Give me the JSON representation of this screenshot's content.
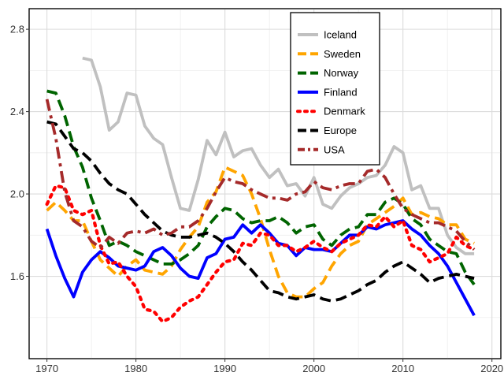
{
  "chart_data": {
    "type": "line",
    "title": "",
    "xlabel": "",
    "ylabel": "",
    "xlim": [
      1968,
      2021
    ],
    "ylim": [
      1.2,
      2.9
    ],
    "xticks": [
      1970,
      1980,
      1990,
      2000,
      2010,
      2020
    ],
    "yticks": [
      1.6,
      2.0,
      2.4,
      2.8
    ],
    "xtick_labels": [
      "1970",
      "1980",
      "1990",
      "2000",
      "2010",
      "2020"
    ],
    "ytick_labels": [
      "1.6",
      "2.0",
      "2.4",
      "2.8"
    ],
    "grid": true,
    "legend_position": "top-right",
    "series": [
      {
        "name": "Iceland",
        "color": "#c0c0c0",
        "style": "solid",
        "x": [
          1974,
          1975,
          1976,
          1977,
          1978,
          1979,
          1980,
          1981,
          1982,
          1983,
          1984,
          1985,
          1986,
          1987,
          1988,
          1989,
          1990,
          1991,
          1992,
          1993,
          1994,
          1995,
          1996,
          1997,
          1998,
          1999,
          2000,
          2001,
          2002,
          2003,
          2004,
          2005,
          2006,
          2007,
          2008,
          2009,
          2010,
          2011,
          2012,
          2013,
          2014,
          2015,
          2016,
          2017,
          2018
        ],
        "y": [
          2.66,
          2.65,
          2.52,
          2.31,
          2.35,
          2.49,
          2.48,
          2.33,
          2.27,
          2.24,
          2.08,
          1.93,
          1.92,
          2.07,
          2.26,
          2.19,
          2.3,
          2.18,
          2.21,
          2.22,
          2.14,
          2.08,
          2.12,
          2.04,
          2.05,
          1.99,
          2.08,
          1.95,
          1.93,
          1.99,
          2.03,
          2.05,
          2.08,
          2.09,
          2.14,
          2.23,
          2.2,
          2.02,
          2.04,
          1.93,
          1.93,
          1.8,
          1.74,
          1.71,
          1.71
        ]
      },
      {
        "name": "Sweden",
        "color": "#ffa500",
        "style": "longdash",
        "x": [
          1970,
          1971,
          1972,
          1973,
          1974,
          1975,
          1976,
          1977,
          1978,
          1979,
          1980,
          1981,
          1982,
          1983,
          1984,
          1985,
          1986,
          1987,
          1988,
          1989,
          1990,
          1991,
          1992,
          1993,
          1994,
          1995,
          1996,
          1997,
          1998,
          1999,
          2000,
          2001,
          2002,
          2003,
          2004,
          2005,
          2006,
          2007,
          2008,
          2009,
          2010,
          2011,
          2012,
          2013,
          2014,
          2015,
          2016,
          2017,
          2018
        ],
        "y": [
          1.92,
          1.96,
          1.92,
          1.87,
          1.87,
          1.77,
          1.68,
          1.64,
          1.6,
          1.65,
          1.68,
          1.63,
          1.62,
          1.61,
          1.65,
          1.73,
          1.79,
          1.84,
          1.96,
          2.01,
          2.13,
          2.11,
          2.09,
          2.0,
          1.88,
          1.73,
          1.6,
          1.52,
          1.5,
          1.5,
          1.54,
          1.57,
          1.65,
          1.71,
          1.75,
          1.77,
          1.85,
          1.88,
          1.91,
          1.94,
          1.98,
          1.9,
          1.91,
          1.89,
          1.88,
          1.85,
          1.85,
          1.78,
          1.76
        ]
      },
      {
        "name": "Norway",
        "color": "#006400",
        "style": "longdash",
        "x": [
          1970,
          1971,
          1972,
          1973,
          1974,
          1975,
          1976,
          1977,
          1978,
          1979,
          1980,
          1981,
          1982,
          1983,
          1984,
          1985,
          1986,
          1987,
          1988,
          1989,
          1990,
          1991,
          1992,
          1993,
          1994,
          1995,
          1996,
          1997,
          1998,
          1999,
          2000,
          2001,
          2002,
          2003,
          2004,
          2005,
          2006,
          2007,
          2008,
          2009,
          2010,
          2011,
          2012,
          2013,
          2014,
          2015,
          2016,
          2017,
          2018
        ],
        "y": [
          2.5,
          2.49,
          2.38,
          2.23,
          2.13,
          1.98,
          1.87,
          1.75,
          1.77,
          1.75,
          1.72,
          1.7,
          1.68,
          1.66,
          1.66,
          1.68,
          1.71,
          1.75,
          1.84,
          1.89,
          1.93,
          1.92,
          1.88,
          1.86,
          1.87,
          1.87,
          1.89,
          1.86,
          1.81,
          1.84,
          1.85,
          1.78,
          1.75,
          1.8,
          1.83,
          1.84,
          1.9,
          1.9,
          1.96,
          1.98,
          1.95,
          1.88,
          1.85,
          1.78,
          1.75,
          1.72,
          1.71,
          1.62,
          1.56
        ]
      },
      {
        "name": "Finland",
        "color": "#0000ff",
        "style": "solid",
        "x": [
          1970,
          1971,
          1972,
          1973,
          1974,
          1975,
          1976,
          1977,
          1978,
          1979,
          1980,
          1981,
          1982,
          1983,
          1984,
          1985,
          1986,
          1987,
          1988,
          1989,
          1990,
          1991,
          1992,
          1993,
          1994,
          1995,
          1996,
          1997,
          1998,
          1999,
          2000,
          2001,
          2002,
          2003,
          2004,
          2005,
          2006,
          2007,
          2008,
          2009,
          2010,
          2011,
          2012,
          2013,
          2014,
          2015,
          2016,
          2017,
          2018
        ],
        "y": [
          1.83,
          1.7,
          1.59,
          1.5,
          1.62,
          1.68,
          1.72,
          1.69,
          1.65,
          1.64,
          1.63,
          1.65,
          1.72,
          1.74,
          1.7,
          1.64,
          1.6,
          1.59,
          1.69,
          1.71,
          1.78,
          1.79,
          1.85,
          1.81,
          1.85,
          1.81,
          1.76,
          1.75,
          1.7,
          1.74,
          1.73,
          1.73,
          1.72,
          1.76,
          1.8,
          1.8,
          1.84,
          1.83,
          1.85,
          1.86,
          1.87,
          1.83,
          1.8,
          1.75,
          1.71,
          1.65,
          1.57,
          1.49,
          1.41
        ]
      },
      {
        "name": "Denmark",
        "color": "#ff0000",
        "style": "dotted",
        "x": [
          1970,
          1971,
          1972,
          1973,
          1974,
          1975,
          1976,
          1977,
          1978,
          1979,
          1980,
          1981,
          1982,
          1983,
          1984,
          1985,
          1986,
          1987,
          1988,
          1989,
          1990,
          1991,
          1992,
          1993,
          1994,
          1995,
          1996,
          1997,
          1998,
          1999,
          2000,
          2001,
          2002,
          2003,
          2004,
          2005,
          2006,
          2007,
          2008,
          2009,
          2010,
          2011,
          2012,
          2013,
          2014,
          2015,
          2016,
          2017,
          2018
        ],
        "y": [
          1.95,
          2.04,
          2.03,
          1.92,
          1.9,
          1.92,
          1.75,
          1.66,
          1.67,
          1.6,
          1.55,
          1.44,
          1.43,
          1.38,
          1.4,
          1.45,
          1.48,
          1.5,
          1.56,
          1.62,
          1.67,
          1.68,
          1.76,
          1.75,
          1.81,
          1.8,
          1.75,
          1.75,
          1.72,
          1.74,
          1.77,
          1.74,
          1.72,
          1.76,
          1.78,
          1.8,
          1.85,
          1.84,
          1.89,
          1.84,
          1.87,
          1.75,
          1.73,
          1.67,
          1.69,
          1.71,
          1.79,
          1.75,
          1.73
        ]
      },
      {
        "name": "Europe",
        "color": "#000000",
        "style": "longdash",
        "x": [
          1970,
          1971,
          1972,
          1973,
          1974,
          1975,
          1976,
          1977,
          1978,
          1979,
          1980,
          1981,
          1982,
          1983,
          1984,
          1985,
          1986,
          1987,
          1988,
          1989,
          1990,
          1991,
          1992,
          1993,
          1994,
          1995,
          1996,
          1997,
          1998,
          1999,
          2000,
          2001,
          2002,
          2003,
          2004,
          2005,
          2006,
          2007,
          2008,
          2009,
          2010,
          2011,
          2012,
          2013,
          2014,
          2015,
          2016,
          2017,
          2018
        ],
        "y": [
          2.35,
          2.34,
          2.28,
          2.22,
          2.2,
          2.16,
          2.1,
          2.05,
          2.02,
          2.0,
          1.95,
          1.9,
          1.86,
          1.82,
          1.8,
          1.79,
          1.79,
          1.8,
          1.81,
          1.79,
          1.76,
          1.72,
          1.67,
          1.63,
          1.58,
          1.53,
          1.52,
          1.5,
          1.49,
          1.5,
          1.51,
          1.49,
          1.48,
          1.49,
          1.51,
          1.53,
          1.56,
          1.58,
          1.62,
          1.65,
          1.67,
          1.64,
          1.61,
          1.57,
          1.59,
          1.6,
          1.61,
          1.6,
          1.59
        ]
      },
      {
        "name": "USA",
        "color": "#a52a2a",
        "style": "dashdot",
        "x": [
          1970,
          1971,
          1972,
          1973,
          1974,
          1975,
          1976,
          1977,
          1978,
          1979,
          1980,
          1981,
          1982,
          1983,
          1984,
          1985,
          1986,
          1987,
          1988,
          1989,
          1990,
          1991,
          1992,
          1993,
          1994,
          1995,
          1996,
          1997,
          1998,
          1999,
          2000,
          2001,
          2002,
          2003,
          2004,
          2005,
          2006,
          2007,
          2008,
          2009,
          2010,
          2011,
          2012,
          2013,
          2014,
          2015,
          2016,
          2017,
          2018
        ],
        "y": [
          2.46,
          2.27,
          2.01,
          1.87,
          1.84,
          1.77,
          1.74,
          1.79,
          1.76,
          1.81,
          1.82,
          1.81,
          1.83,
          1.8,
          1.81,
          1.84,
          1.84,
          1.87,
          1.93,
          2.01,
          2.08,
          2.06,
          2.05,
          2.02,
          2.0,
          1.98,
          1.98,
          1.97,
          2.0,
          2.01,
          2.06,
          2.03,
          2.02,
          2.04,
          2.05,
          2.05,
          2.11,
          2.12,
          2.08,
          2.0,
          1.93,
          1.9,
          1.88,
          1.86,
          1.86,
          1.84,
          1.82,
          1.77,
          1.73
        ]
      }
    ]
  }
}
